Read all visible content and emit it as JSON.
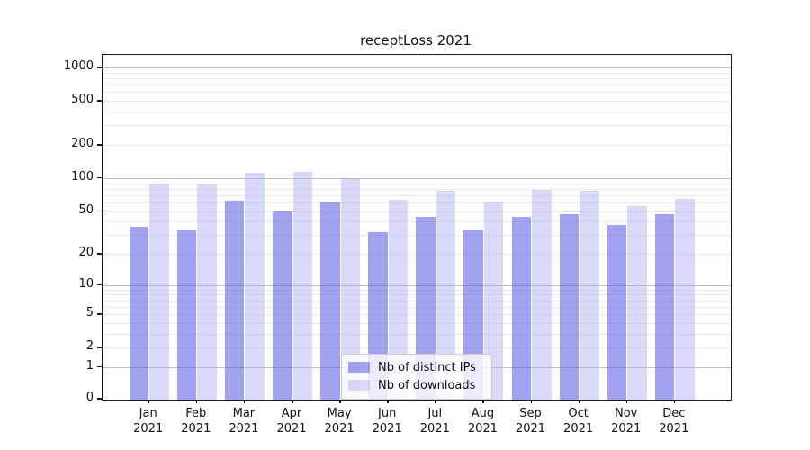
{
  "chart_data": {
    "type": "bar",
    "title": "receptLoss 2021",
    "yscale": "log1p",
    "grid": "on",
    "legend_position": "lower center",
    "ylim": [
      0,
      1300
    ],
    "yticks": [
      1000,
      500,
      200,
      100,
      50,
      20,
      10,
      5,
      2,
      1,
      0
    ],
    "minor_grid_values": [
      2,
      3,
      4,
      5,
      6,
      7,
      8,
      9,
      20,
      30,
      40,
      50,
      60,
      70,
      80,
      90,
      200,
      300,
      400,
      500,
      600,
      700,
      800,
      900
    ],
    "major_grid_values": [
      1,
      10,
      100,
      1000
    ],
    "months": [
      "Jan",
      "Feb",
      "Mar",
      "Apr",
      "May",
      "Jun",
      "Jul",
      "Aug",
      "Sep",
      "Oct",
      "Nov",
      "Dec"
    ],
    "year_label": "2021",
    "categories": [
      "Jan 2021",
      "Feb 2021",
      "Mar 2021",
      "Apr 2021",
      "May 2021",
      "Jun 2021",
      "Jul 2021",
      "Aug 2021",
      "Sep 2021",
      "Oct 2021",
      "Nov 2021",
      "Dec 2021"
    ],
    "series": [
      {
        "name": "Nb of distinct IPs",
        "color": "rgba(85,85,230,0.55)",
        "values": [
          36,
          33,
          62,
          50,
          60,
          32,
          44,
          33,
          44,
          47,
          37,
          47
        ]
      },
      {
        "name": "Nb of downloads",
        "color": "rgba(170,170,240,0.45)",
        "values": [
          90,
          88,
          111,
          114,
          100,
          64,
          77,
          60,
          78,
          77,
          55,
          65
        ]
      }
    ]
  },
  "colors": {
    "distinct_ips_bar": "rgba(85,85,230,0.55)",
    "downloads_bar": "rgba(170,170,240,0.45)",
    "major_gridline": "#c0c0c0",
    "minor_gridline": "#ebebeb",
    "spine": "#1a1a1a"
  }
}
